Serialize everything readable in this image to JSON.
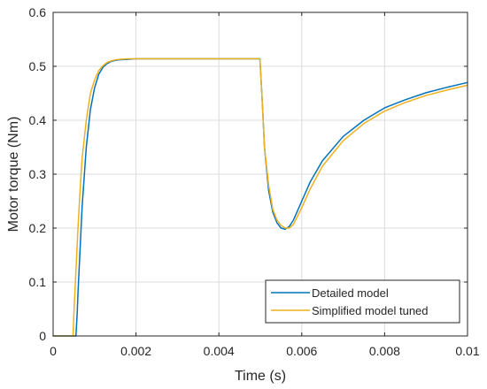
{
  "chart_data": {
    "type": "line",
    "title": "",
    "xlabel": "Time (s)",
    "ylabel": "Motor torque (Nm)",
    "xlim": [
      0,
      0.01
    ],
    "ylim": [
      0,
      0.6
    ],
    "x_ticks": [
      0,
      0.002,
      0.004,
      0.006,
      0.008,
      0.01
    ],
    "x_tick_labels": [
      "0",
      "0.002",
      "0.004",
      "0.006",
      "0.008",
      "0.01"
    ],
    "y_ticks": [
      0,
      0.1,
      0.2,
      0.3,
      0.4,
      0.5,
      0.6
    ],
    "y_tick_labels": [
      "0",
      "0.1",
      "0.2",
      "0.3",
      "0.4",
      "0.5",
      "0.6"
    ],
    "grid": true,
    "legend_position": "bottom-right",
    "series": [
      {
        "name": "Detailed model",
        "color": "#0072BD",
        "x": [
          0,
          0.00055,
          0.00058,
          0.0006,
          0.00065,
          0.0007,
          0.0008,
          0.0009,
          0.001,
          0.0011,
          0.0012,
          0.0013,
          0.0014,
          0.0015,
          0.0016,
          0.0018,
          0.002,
          0.0025,
          0.003,
          0.0035,
          0.004,
          0.0045,
          0.00499,
          0.005,
          0.00505,
          0.0051,
          0.0052,
          0.0053,
          0.0054,
          0.0055,
          0.0056,
          0.0057,
          0.0058,
          0.006,
          0.0062,
          0.0065,
          0.007,
          0.0075,
          0.008,
          0.0085,
          0.009,
          0.0095,
          0.01
        ],
        "y": [
          0,
          0,
          0.04,
          0.08,
          0.16,
          0.24,
          0.35,
          0.42,
          0.46,
          0.485,
          0.498,
          0.505,
          0.509,
          0.511,
          0.512,
          0.513,
          0.514,
          0.514,
          0.514,
          0.514,
          0.514,
          0.514,
          0.514,
          0.5,
          0.43,
          0.35,
          0.27,
          0.23,
          0.21,
          0.2,
          0.198,
          0.203,
          0.215,
          0.25,
          0.285,
          0.325,
          0.37,
          0.4,
          0.423,
          0.438,
          0.451,
          0.461,
          0.47
        ]
      },
      {
        "name": "Simplified model tuned",
        "color": "#EDB120",
        "x": [
          0,
          0.00048,
          0.0005,
          0.00055,
          0.0006,
          0.00065,
          0.0007,
          0.0008,
          0.0009,
          0.001,
          0.0011,
          0.0012,
          0.0013,
          0.0014,
          0.0015,
          0.0016,
          0.0018,
          0.002,
          0.0025,
          0.003,
          0.0035,
          0.004,
          0.0045,
          0.00499,
          0.005,
          0.00505,
          0.0051,
          0.0052,
          0.0053,
          0.0054,
          0.0055,
          0.0056,
          0.0057,
          0.0058,
          0.006,
          0.0062,
          0.0065,
          0.007,
          0.0075,
          0.008,
          0.0085,
          0.009,
          0.0095,
          0.01
        ],
        "y": [
          0,
          0,
          0.04,
          0.12,
          0.2,
          0.27,
          0.33,
          0.4,
          0.45,
          0.475,
          0.492,
          0.501,
          0.507,
          0.51,
          0.512,
          0.513,
          0.514,
          0.514,
          0.514,
          0.514,
          0.514,
          0.514,
          0.514,
          0.514,
          0.5,
          0.43,
          0.35,
          0.28,
          0.235,
          0.215,
          0.205,
          0.2,
          0.2,
          0.207,
          0.238,
          0.272,
          0.315,
          0.362,
          0.394,
          0.417,
          0.433,
          0.446,
          0.456,
          0.465
        ]
      }
    ]
  }
}
